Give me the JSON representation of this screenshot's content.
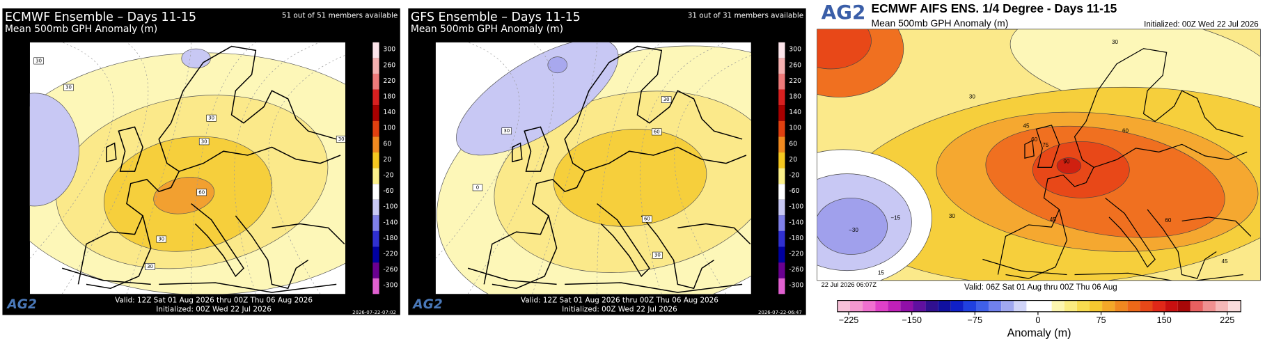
{
  "panels": [
    {
      "title": "ECMWF Ensemble – Days 11-15",
      "subtitle": "Mean 500mb GPH Anomaly (m)",
      "members": "51 out of 51 members available",
      "valid": "Valid: 12Z Sat 01 Aug 2026 thru 00Z Thu 06 Aug 2026",
      "initialized": "Initialized: 00Z Wed 22 Jul 2026",
      "timestamp": "2026-07-22-07:02",
      "logo": "AG2",
      "colorbar_ticks": [
        "300",
        "260",
        "220",
        "180",
        "140",
        "100",
        "60",
        "20",
        "-20",
        "-60",
        "-100",
        "-140",
        "-180",
        "-220",
        "-260",
        "-300"
      ],
      "contour_labels": [
        "30",
        "30",
        "30",
        "30",
        "60",
        "30",
        "30",
        "30"
      ]
    },
    {
      "title": "GFS Ensemble – Days 11-15",
      "subtitle": "Mean 500mb GPH Anomaly (m)",
      "members": "31 out of 31 members available",
      "valid": "Valid: 12Z Sat 01 Aug 2026 thru 00Z Thu 06 Aug 2026",
      "initialized": "Initialized: 00Z Wed 22 Jul 2026",
      "timestamp": "2026-07-22-06:47",
      "logo": "AG2",
      "colorbar_ticks": [
        "300",
        "260",
        "220",
        "180",
        "140",
        "100",
        "60",
        "20",
        "-20",
        "-60",
        "-100",
        "-140",
        "-180",
        "-220",
        "-260",
        "-300"
      ],
      "contour_labels": [
        "30",
        "60",
        "30",
        "0",
        "60",
        "30"
      ]
    }
  ],
  "aifs": {
    "logo": "AG2",
    "title": "ECMWF AIFS ENS. 1/4 Degree - Days 11-15",
    "subtitle": "Mean 500mb GPH Anomaly (m)",
    "initialized": "Initialized: 00Z Wed 22 Jul 2026",
    "run_time": "22 Jul 2026 06:07Z",
    "valid": "Valid: 06Z Sat 01 Aug thru 00Z Thu 06 Aug",
    "colorbar_ticks": [
      "−225",
      "−150",
      "−75",
      "0",
      "75",
      "150",
      "225"
    ],
    "colorbar_label": "Anomaly (m)",
    "contour_labels": [
      "30",
      "30",
      "45",
      "60",
      "75",
      "90",
      "60",
      "45",
      "30",
      "−15",
      "−30",
      "15",
      "60",
      "45"
    ]
  }
}
